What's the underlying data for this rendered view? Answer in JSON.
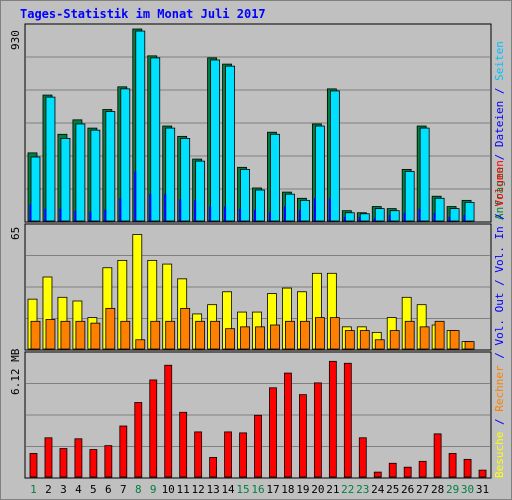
{
  "title": "Tages-Statistik im Monat Juli 2017",
  "panels": {
    "top": {
      "max_label": "930"
    },
    "middle": {
      "max_label": "65"
    },
    "bottom": {
      "max_label": "6.12 MB"
    }
  },
  "legend_right": {
    "top": [
      {
        "text": "Anfragen",
        "color": "#008040"
      },
      {
        "text": " / ",
        "color": "#0000ff"
      },
      {
        "text": "Dateien",
        "color": "#0000ff"
      },
      {
        "text": " / ",
        "color": "#0000ff"
      },
      {
        "text": "Seiten",
        "color": "#00c0ff"
      }
    ],
    "middle": [
      {
        "text": "Besuche",
        "color": "#ffff00"
      },
      {
        "text": " / ",
        "color": "#0000ff"
      },
      {
        "text": "Rechner",
        "color": "#ff8000"
      },
      {
        "text": " / ",
        "color": "#0000ff"
      },
      {
        "text": "Vol. Out",
        "color": "#0000ff"
      },
      {
        "text": " / ",
        "color": "#0000ff"
      },
      {
        "text": "Vol. In",
        "color": "#0000ff"
      },
      {
        "text": " / ",
        "color": "#0000ff"
      },
      {
        "text": "Volumen",
        "color": "#ff0000"
      }
    ]
  },
  "colors": {
    "anfragen": "#008040",
    "dateien": "#0000ff",
    "seiten": "#00e0ff",
    "besuche": "#ffff00",
    "rechner": "#ff8000",
    "volumen": "#ff0000",
    "grid": "#808080",
    "weekend_label": "#008040",
    "weekday_label": "#000000"
  },
  "chart_data": {
    "type": "bar",
    "categories": [
      "1",
      "2",
      "3",
      "4",
      "5",
      "6",
      "7",
      "8",
      "9",
      "10",
      "11",
      "12",
      "13",
      "14",
      "15",
      "16",
      "17",
      "18",
      "19",
      "20",
      "21",
      "22",
      "23",
      "24",
      "25",
      "26",
      "27",
      "28",
      "29",
      "30",
      "31"
    ],
    "weekend_days": [
      "1",
      "8",
      "9",
      "15",
      "16",
      "22",
      "23",
      "29",
      "30"
    ],
    "panels": [
      {
        "name": "top",
        "ymax": 930,
        "series": [
          {
            "name": "Anfragen",
            "values": [
              330,
              610,
              420,
              490,
              450,
              540,
              650,
              930,
              800,
              460,
              410,
              300,
              790,
              760,
              260,
              160,
              430,
              140,
              110,
              470,
              640,
              50,
              40,
              70,
              60,
              250,
              460,
              120,
              70,
              100,
              0
            ]
          },
          {
            "name": "Dateien",
            "values": [
              80,
              60,
              60,
              50,
              45,
              55,
              110,
              240,
              130,
              130,
              105,
              100,
              70,
              70,
              60,
              55,
              45,
              70,
              55,
              110,
              110,
              20,
              20,
              15,
              30,
              40,
              60,
              40,
              20,
              30,
              0
            ]
          },
          {
            "name": "Seiten",
            "values": [
              310,
              600,
              400,
              470,
              440,
              530,
              640,
              920,
              790,
              450,
              400,
              290,
              780,
              750,
              250,
              150,
              420,
              130,
              100,
              460,
              630,
              40,
              35,
              60,
              50,
              240,
              450,
              110,
              60,
              90,
              0
            ]
          }
        ]
      },
      {
        "name": "middle",
        "ymax": 65,
        "series": [
          {
            "name": "Besuche",
            "values": [
              27,
              39,
              28,
              26,
              17,
              44,
              48,
              62,
              48,
              46,
              38,
              19,
              24,
              31,
              20,
              20,
              30,
              33,
              31,
              41,
              41,
              12,
              12,
              9,
              17,
              28,
              24,
              13,
              10,
              4,
              0
            ]
          },
          {
            "name": "Rechner",
            "values": [
              15,
              16,
              15,
              15,
              14,
              22,
              15,
              5,
              15,
              15,
              22,
              15,
              15,
              11,
              12,
              12,
              13,
              15,
              15,
              17,
              17,
              10,
              10,
              5,
              10,
              15,
              12,
              15,
              10,
              4,
              0
            ]
          }
        ]
      },
      {
        "name": "bottom",
        "ymax": 6.12,
        "unit": "MB",
        "series": [
          {
            "name": "Volumen",
            "values": [
              1.2,
              2.0,
              1.45,
              1.95,
              1.4,
              1.6,
              2.6,
              3.8,
              4.95,
              5.7,
              3.3,
              2.3,
              1.0,
              2.3,
              2.25,
              3.15,
              4.55,
              5.3,
              4.2,
              4.8,
              5.9,
              5.8,
              2.0,
              0.25,
              0.7,
              0.5,
              0.8,
              2.2,
              1.2,
              0.9,
              0.35
            ]
          }
        ]
      }
    ]
  }
}
